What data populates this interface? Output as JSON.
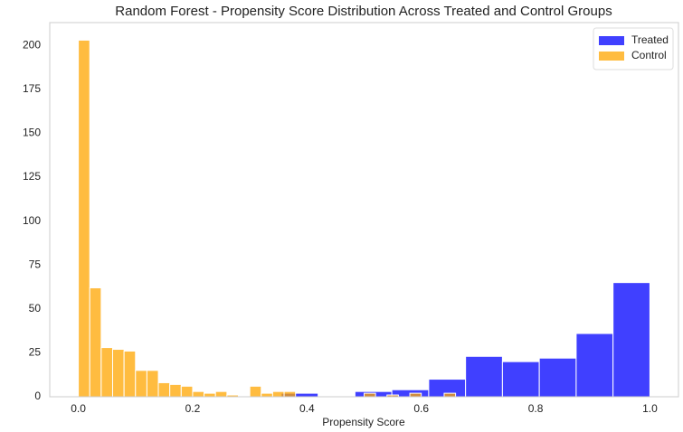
{
  "chart_data": {
    "type": "histogram",
    "title": "Random Forest - Propensity Score Distribution Across Treated and Control Groups",
    "x_label": "Propensity Score",
    "xlim": [
      -0.05,
      1.05
    ],
    "ylim": [
      0,
      213
    ],
    "xticks": [
      {
        "value": 0,
        "label": "0.0"
      },
      0.2,
      0.4,
      0.6,
      0.8,
      {
        "value": 1,
        "label": "1.0"
      }
    ],
    "yticks": [
      0,
      25,
      50,
      75,
      100,
      125,
      150,
      175,
      200
    ],
    "grid": false,
    "legend": "upper right",
    "alpha": 0.75,
    "series": [
      {
        "name": "Treated",
        "color": "#0000ff",
        "bins": [
          0.355,
          0.4195,
          0.484,
          0.5485,
          0.613,
          0.6775,
          0.742,
          0.8065,
          0.871,
          0.9355,
          1.0
        ],
        "values": [
          2,
          0,
          3,
          4,
          10,
          23,
          20,
          22,
          36,
          65
        ]
      },
      {
        "name": "Control",
        "color": "#ffa500",
        "bins": [
          0,
          0.02,
          0.04,
          0.06,
          0.08,
          0.1,
          0.12,
          0.14,
          0.16,
          0.18,
          0.2,
          0.22,
          0.24,
          0.26,
          0.28,
          0.3,
          0.32,
          0.34,
          0.36,
          0.38,
          0.4,
          0.42,
          0.44,
          0.46,
          0.48,
          0.5,
          0.52,
          0.54,
          0.56,
          0.58,
          0.6,
          0.62,
          0.64,
          0.66
        ],
        "values": [
          203,
          62,
          28,
          27,
          26,
          15,
          15,
          8,
          7,
          6,
          3,
          2,
          3,
          1,
          0,
          6,
          2,
          3,
          3,
          0,
          0,
          0,
          0,
          0,
          0,
          2,
          0,
          1,
          0,
          2,
          0,
          0,
          2
        ]
      }
    ]
  }
}
